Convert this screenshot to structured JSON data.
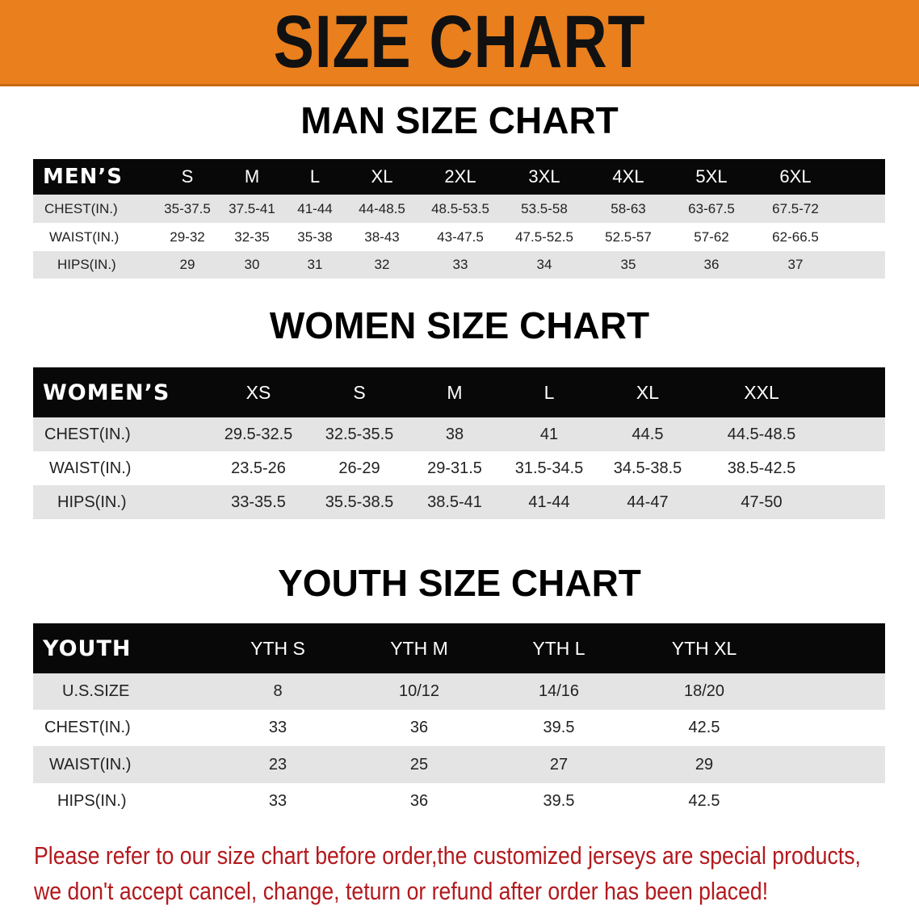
{
  "banner": {
    "title": "SIZE CHART",
    "color": "#e97f1d"
  },
  "men": {
    "title": "MAN SIZE CHART",
    "header": [
      "MEN’S",
      "S",
      "M",
      "L",
      "XL",
      "2XL",
      "3XL",
      "4XL",
      "5XL",
      "6XL"
    ],
    "rows": [
      [
        "CHEST(IN.)",
        "35-37.5",
        "37.5-41",
        "41-44",
        "44-48.5",
        "48.5-53.5",
        "53.5-58",
        "58-63",
        "63-67.5",
        "67.5-72"
      ],
      [
        "WAIST(IN.)",
        "29-32",
        "32-35",
        "35-38",
        "38-43",
        "43-47.5",
        "47.5-52.5",
        "52.5-57",
        "57-62",
        "62-66.5"
      ],
      [
        "HIPS(IN.)",
        "29",
        "30",
        "31",
        "32",
        "33",
        "34",
        "35",
        "36",
        "37"
      ]
    ]
  },
  "women": {
    "title": "WOMEN SIZE CHART",
    "header": [
      "WOMEN’S",
      "XS",
      "S",
      "M",
      "L",
      "XL",
      "XXL"
    ],
    "rows": [
      [
        "CHEST(IN.)",
        "29.5-32.5",
        "32.5-35.5",
        "38",
        "41",
        "44.5",
        "44.5-48.5"
      ],
      [
        "WAIST(IN.)",
        "23.5-26",
        "26-29",
        "29-31.5",
        "31.5-34.5",
        "34.5-38.5",
        "38.5-42.5"
      ],
      [
        "HIPS(IN.)",
        "33-35.5",
        "35.5-38.5",
        "38.5-41",
        "41-44",
        "44-47",
        "47-50"
      ]
    ]
  },
  "youth": {
    "title": "YOUTH SIZE CHART",
    "header": [
      "YOUTH",
      "YTH S",
      "YTH M",
      "YTH L",
      "YTH XL"
    ],
    "rows": [
      [
        "U.S.SIZE",
        "8",
        "10/12",
        "14/16",
        "18/20"
      ],
      [
        "CHEST(IN.)",
        "33",
        "36",
        "39.5",
        "42.5"
      ],
      [
        "WAIST(IN.)",
        "23",
        "25",
        "27",
        "29"
      ],
      [
        "HIPS(IN.)",
        "33",
        "36",
        "39.5",
        "42.5"
      ]
    ]
  },
  "notice": {
    "line1": "Please refer to our size chart before order,the customized jerseys are special products,",
    "line2": "we don't accept cancel, change, teturn or refund after order has been placed!",
    "color": "#b3191d"
  }
}
